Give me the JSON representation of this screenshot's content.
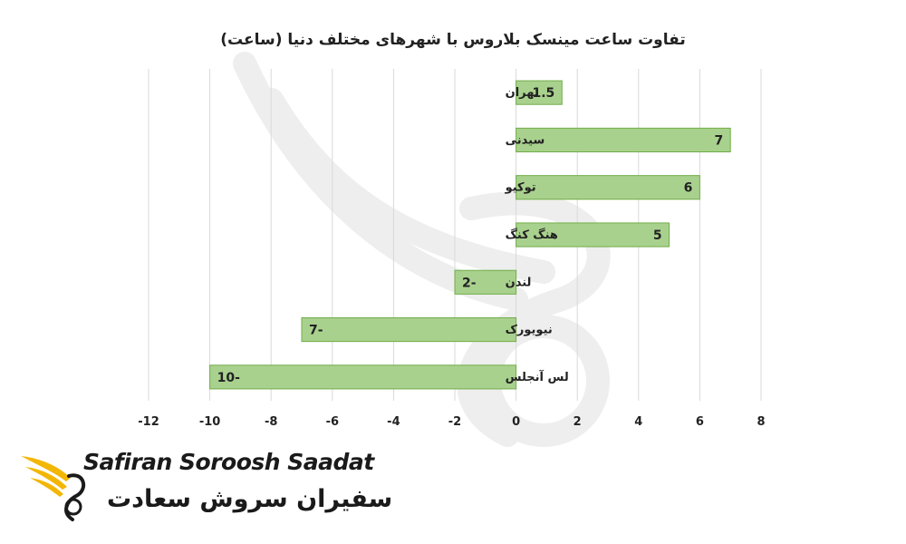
{
  "chart_data": {
    "type": "bar",
    "orientation": "horizontal",
    "title": "تفاوت ساعت مینسک بلاروس با شهرهای مختلف دنیا (ساعت)",
    "categories": [
      "تهران",
      "سیدنی",
      "توکیو",
      "هنگ کنگ",
      "لندن",
      "نیویورک",
      "لس آنجلس"
    ],
    "values": [
      1.5,
      7,
      6,
      5,
      -2,
      -7,
      -10
    ],
    "data_labels": [
      "1.5",
      "7",
      "6",
      "5",
      "2-",
      "7-",
      "10-"
    ],
    "xlim": [
      -12,
      8
    ],
    "xticks": [
      -12,
      -10,
      -8,
      -6,
      -4,
      -2,
      0,
      2,
      4,
      6,
      8
    ],
    "xtick_labels": [
      "-12",
      "-10",
      "-8",
      "-6",
      "-4",
      "-2",
      "0",
      "2",
      "4",
      "6",
      "8"
    ],
    "grid": "vertical",
    "legend": "none",
    "colors": {
      "bar_fill": "#a9d18e",
      "bar_stroke": "#70ad47",
      "grid": "#d9d9d9",
      "text": "#222222"
    }
  },
  "logo": {
    "name_en": "Safiran Soroosh Saadat",
    "name_fa": "سفیران سروش سعادت",
    "colors": {
      "wing": "#f2b705",
      "text": "#1a1a1a"
    }
  }
}
